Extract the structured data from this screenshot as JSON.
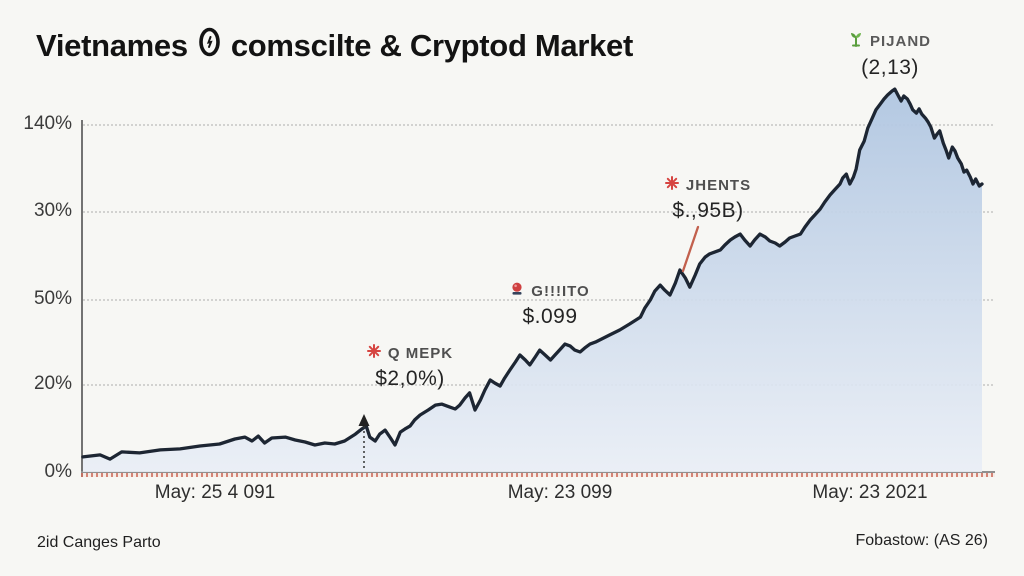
{
  "title": {
    "part1": "Vietnames",
    "part2": "comscilte & Cryptod Market"
  },
  "footer": {
    "left": "2id Canges Parto",
    "right": "Fobastow: (AS 26)"
  },
  "colors": {
    "background": "#f7f7f4",
    "line": "#1d2633",
    "area_top": "#b0c6e1",
    "area_bottom": "#e9eef6",
    "grid": "#d2d2d0",
    "axis": "#8f8f8f",
    "tick_strip_red": "#ce705f",
    "annotation_red": "#d64541",
    "annotation_green": "#5a9e3d",
    "pointer_red": "#c2604d"
  },
  "chart_data": {
    "type": "area",
    "title": "Vietnames () comscilte & Cryptod Market",
    "xlabel": "",
    "ylabel": "",
    "ylim": [
      0,
      140
    ],
    "grid": "horizontal dotted",
    "legend": "none",
    "y_ticks": [
      "140%",
      "30%",
      "50%",
      "20%",
      "0%"
    ],
    "x_ticks": [
      "May:  25 4 091",
      "May:  23 099",
      "May:  23 2021"
    ],
    "series": [
      {
        "name": "market-index-pct",
        "points": [
          [
            0.0,
            6.1
          ],
          [
            0.019,
            6.9
          ],
          [
            0.03,
            5.2
          ],
          [
            0.043,
            8.1
          ],
          [
            0.063,
            7.7
          ],
          [
            0.086,
            8.9
          ],
          [
            0.108,
            9.3
          ],
          [
            0.13,
            10.5
          ],
          [
            0.152,
            11.3
          ],
          [
            0.169,
            13.3
          ],
          [
            0.18,
            14.1
          ],
          [
            0.188,
            12.5
          ],
          [
            0.195,
            14.5
          ],
          [
            0.202,
            11.7
          ],
          [
            0.21,
            13.7
          ],
          [
            0.225,
            14.1
          ],
          [
            0.236,
            12.9
          ],
          [
            0.247,
            12.1
          ],
          [
            0.258,
            10.9
          ],
          [
            0.269,
            11.7
          ],
          [
            0.28,
            11.3
          ],
          [
            0.291,
            12.5
          ],
          [
            0.303,
            15.3
          ],
          [
            0.31,
            17.3
          ],
          [
            0.315,
            18.6
          ],
          [
            0.319,
            14.1
          ],
          [
            0.325,
            12.5
          ],
          [
            0.33,
            15.3
          ],
          [
            0.336,
            16.9
          ],
          [
            0.342,
            13.7
          ],
          [
            0.347,
            10.9
          ],
          [
            0.353,
            16.1
          ],
          [
            0.358,
            17.3
          ],
          [
            0.364,
            18.6
          ],
          [
            0.369,
            21.0
          ],
          [
            0.375,
            23.0
          ],
          [
            0.384,
            25.0
          ],
          [
            0.392,
            27.0
          ],
          [
            0.399,
            27.4
          ],
          [
            0.408,
            26.2
          ],
          [
            0.414,
            25.4
          ],
          [
            0.419,
            27.0
          ],
          [
            0.425,
            29.9
          ],
          [
            0.43,
            31.9
          ],
          [
            0.436,
            25.0
          ],
          [
            0.442,
            29.0
          ],
          [
            0.447,
            33.1
          ],
          [
            0.453,
            37.1
          ],
          [
            0.458,
            35.9
          ],
          [
            0.464,
            34.7
          ],
          [
            0.469,
            37.9
          ],
          [
            0.475,
            41.2
          ],
          [
            0.481,
            44.4
          ],
          [
            0.486,
            47.2
          ],
          [
            0.492,
            45.2
          ],
          [
            0.497,
            43.2
          ],
          [
            0.503,
            46.4
          ],
          [
            0.508,
            49.2
          ],
          [
            0.514,
            47.2
          ],
          [
            0.52,
            45.2
          ],
          [
            0.525,
            47.2
          ],
          [
            0.531,
            49.6
          ],
          [
            0.536,
            51.6
          ],
          [
            0.542,
            50.8
          ],
          [
            0.547,
            49.2
          ],
          [
            0.553,
            48.4
          ],
          [
            0.558,
            50.0
          ],
          [
            0.564,
            51.6
          ],
          [
            0.57,
            52.4
          ],
          [
            0.575,
            53.3
          ],
          [
            0.586,
            55.3
          ],
          [
            0.597,
            57.3
          ],
          [
            0.608,
            59.7
          ],
          [
            0.62,
            62.5
          ],
          [
            0.625,
            66.2
          ],
          [
            0.631,
            69.4
          ],
          [
            0.636,
            73.0
          ],
          [
            0.642,
            75.4
          ],
          [
            0.647,
            73.4
          ],
          [
            0.653,
            71.4
          ],
          [
            0.659,
            76.3
          ],
          [
            0.664,
            81.5
          ],
          [
            0.67,
            78.3
          ],
          [
            0.675,
            74.6
          ],
          [
            0.681,
            79.5
          ],
          [
            0.686,
            83.9
          ],
          [
            0.692,
            86.7
          ],
          [
            0.697,
            88.0
          ],
          [
            0.703,
            88.8
          ],
          [
            0.709,
            89.6
          ],
          [
            0.714,
            91.6
          ],
          [
            0.72,
            93.6
          ],
          [
            0.725,
            94.8
          ],
          [
            0.731,
            96.0
          ],
          [
            0.736,
            93.6
          ],
          [
            0.742,
            91.2
          ],
          [
            0.747,
            93.6
          ],
          [
            0.753,
            96.0
          ],
          [
            0.759,
            94.8
          ],
          [
            0.764,
            93.2
          ],
          [
            0.77,
            92.4
          ],
          [
            0.775,
            91.2
          ],
          [
            0.781,
            92.8
          ],
          [
            0.786,
            94.4
          ],
          [
            0.792,
            95.2
          ],
          [
            0.798,
            96.0
          ],
          [
            0.803,
            98.8
          ],
          [
            0.809,
            101.7
          ],
          [
            0.814,
            103.7
          ],
          [
            0.82,
            106.1
          ],
          [
            0.825,
            108.9
          ],
          [
            0.831,
            111.8
          ],
          [
            0.836,
            113.8
          ],
          [
            0.842,
            116.2
          ],
          [
            0.845,
            118.6
          ],
          [
            0.849,
            120.2
          ],
          [
            0.853,
            116.2
          ],
          [
            0.857,
            119.0
          ],
          [
            0.86,
            122.2
          ],
          [
            0.864,
            129.9
          ],
          [
            0.869,
            133.5
          ],
          [
            0.873,
            138.8
          ],
          [
            0.878,
            142.8
          ],
          [
            0.882,
            146.1
          ],
          [
            0.887,
            148.5
          ],
          [
            0.891,
            150.5
          ],
          [
            0.895,
            152.1
          ],
          [
            0.9,
            153.7
          ],
          [
            0.903,
            154.5
          ],
          [
            0.907,
            151.7
          ],
          [
            0.91,
            149.7
          ],
          [
            0.913,
            151.7
          ],
          [
            0.917,
            150.5
          ],
          [
            0.92,
            148.5
          ],
          [
            0.923,
            146.1
          ],
          [
            0.927,
            144.8
          ],
          [
            0.93,
            146.5
          ],
          [
            0.933,
            144.4
          ],
          [
            0.937,
            142.8
          ],
          [
            0.94,
            141.2
          ],
          [
            0.943,
            139.2
          ],
          [
            0.947,
            134.7
          ],
          [
            0.95,
            136.3
          ],
          [
            0.953,
            137.6
          ],
          [
            0.957,
            132.7
          ],
          [
            0.96,
            129.9
          ],
          [
            0.963,
            126.7
          ],
          [
            0.967,
            131.1
          ],
          [
            0.97,
            129.5
          ],
          [
            0.973,
            126.7
          ],
          [
            0.977,
            124.3
          ],
          [
            0.98,
            121.0
          ],
          [
            0.983,
            121.8
          ],
          [
            0.987,
            119.0
          ],
          [
            0.99,
            116.2
          ],
          [
            0.993,
            118.2
          ],
          [
            0.997,
            115.4
          ],
          [
            1.0,
            116.2
          ]
        ]
      }
    ],
    "annotations": [
      {
        "id": "mek",
        "label": "Q MEPK",
        "value": "$2,0%)",
        "icon": "burst-icon",
        "icon_color": "#d64541"
      },
      {
        "id": "giito",
        "label": "G!!!ITO",
        "value": "$.099",
        "icon": "pin-icon",
        "icon_color": "#d64541"
      },
      {
        "id": "jhents",
        "label": "JHENTS",
        "value": "$.,95B)",
        "icon": "burst-icon",
        "icon_color": "#d64541"
      },
      {
        "id": "pijand",
        "label": "PIJAND",
        "value": "(2,13)",
        "icon": "sprout-icon",
        "icon_color": "#5a9e3d"
      }
    ]
  }
}
